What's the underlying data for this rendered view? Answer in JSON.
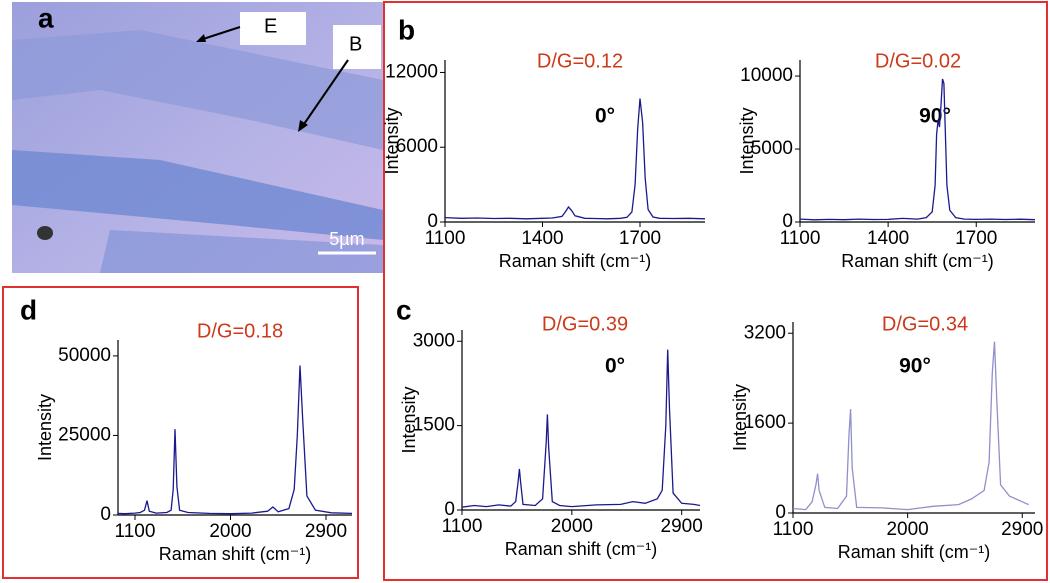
{
  "image": {
    "label": "a",
    "annotations": [
      "E",
      "B"
    ],
    "scale_bar": "5µm"
  },
  "panel_labels": [
    "b",
    "c",
    "d"
  ],
  "chart_data": [
    {
      "type": "line",
      "title": "D/G=0.12",
      "annotation": "0°",
      "xlabel": "Raman shift (cm⁻¹)",
      "ylabel": "Intensity",
      "color": "#1a1a8c",
      "x": [
        1100,
        1150,
        1200,
        1250,
        1300,
        1350,
        1400,
        1430,
        1460,
        1470,
        1480,
        1490,
        1500,
        1530,
        1560,
        1600,
        1640,
        1660,
        1675,
        1685,
        1693,
        1700,
        1708,
        1716,
        1725,
        1740,
        1760,
        1800,
        1850,
        1900
      ],
      "values": [
        350,
        300,
        320,
        280,
        300,
        260,
        300,
        320,
        450,
        800,
        1200,
        900,
        500,
        300,
        280,
        260,
        300,
        380,
        800,
        3000,
        7500,
        9900,
        8000,
        3500,
        1000,
        400,
        300,
        280,
        300,
        260
      ],
      "xlim": [
        1100,
        1900
      ],
      "xticks": [
        1100,
        1400,
        1700
      ],
      "ylim": [
        0,
        13000
      ],
      "yticks": [
        0,
        6000,
        12000
      ]
    },
    {
      "type": "line",
      "title": "D/G=0.02",
      "annotation": "90°",
      "xlabel": "Raman shift (cm⁻¹)",
      "ylabel": "Intensity",
      "color": "#1a1a8c",
      "x": [
        1100,
        1150,
        1200,
        1250,
        1300,
        1350,
        1400,
        1450,
        1500,
        1530,
        1550,
        1560,
        1565,
        1570,
        1575,
        1580,
        1585,
        1590,
        1595,
        1600,
        1610,
        1630,
        1660,
        1700,
        1750,
        1800,
        1850,
        1900
      ],
      "values": [
        200,
        150,
        180,
        160,
        200,
        170,
        180,
        250,
        200,
        300,
        700,
        2500,
        6000,
        7000,
        6500,
        8000,
        9800,
        9500,
        6000,
        2500,
        800,
        300,
        200,
        180,
        200,
        170,
        190,
        160
      ],
      "xlim": [
        1100,
        1900
      ],
      "xticks": [
        1100,
        1400,
        1700
      ],
      "ylim": [
        0,
        11100
      ],
      "yticks": [
        0,
        5000,
        10000
      ]
    },
    {
      "type": "line",
      "title": "D/G=0.39",
      "annotation": "0°",
      "xlabel": "Raman shift (cm⁻¹)",
      "ylabel": "Intensity",
      "color": "#1a1a8c",
      "x": [
        1100,
        1200,
        1300,
        1400,
        1500,
        1540,
        1560,
        1570,
        1580,
        1600,
        1700,
        1760,
        1790,
        1800,
        1810,
        1840,
        1900,
        2000,
        2200,
        2400,
        2500,
        2600,
        2700,
        2740,
        2770,
        2785,
        2800,
        2830,
        2900,
        3000,
        3050
      ],
      "values": [
        50,
        80,
        60,
        90,
        70,
        150,
        500,
        730,
        500,
        100,
        80,
        200,
        1200,
        1700,
        1100,
        150,
        80,
        60,
        90,
        100,
        150,
        120,
        200,
        350,
        1500,
        2850,
        1800,
        300,
        120,
        100,
        80
      ],
      "xlim": [
        1100,
        3050
      ],
      "xticks": [
        1100,
        2000,
        2900
      ],
      "ylim": [
        0,
        3200
      ],
      "yticks": [
        0,
        1500,
        3000
      ]
    },
    {
      "type": "line",
      "title": "D/G=0.34",
      "annotation": "90°",
      "xlabel": "Raman shift (cm⁻¹)",
      "ylabel": "Intensity",
      "color": "#9090cc",
      "x": [
        1100,
        1200,
        1250,
        1280,
        1293,
        1305,
        1350,
        1450,
        1520,
        1540,
        1552,
        1565,
        1600,
        1800,
        2000,
        2200,
        2400,
        2500,
        2600,
        2640,
        2665,
        2682,
        2700,
        2730,
        2800,
        2900,
        2950
      ],
      "values": [
        80,
        60,
        200,
        500,
        700,
        400,
        100,
        80,
        300,
        1400,
        1850,
        800,
        100,
        90,
        60,
        120,
        150,
        250,
        400,
        900,
        2500,
        3050,
        2000,
        500,
        300,
        200,
        150
      ],
      "xlim": [
        1100,
        3000
      ],
      "xticks": [
        1100,
        2000,
        2900
      ],
      "ylim": [
        0,
        3400
      ],
      "yticks": [
        0,
        1600,
        3200
      ]
    },
    {
      "type": "line",
      "title": "D/G=0.18",
      "xlabel": "Raman shift (cm⁻¹)",
      "ylabel": "Intensity",
      "color": "#1a1a8c",
      "x": [
        940,
        1000,
        1100,
        1150,
        1190,
        1213,
        1235,
        1300,
        1400,
        1440,
        1460,
        1477,
        1495,
        1520,
        1600,
        1800,
        2000,
        2200,
        2350,
        2400,
        2450,
        2550,
        2600,
        2630,
        2655,
        2680,
        2720,
        2800,
        2950,
        3145
      ],
      "values": [
        500,
        400,
        600,
        800,
        1500,
        4500,
        1200,
        600,
        800,
        1500,
        8000,
        27000,
        9000,
        1500,
        800,
        500,
        400,
        600,
        1200,
        2500,
        1000,
        2000,
        8000,
        25000,
        47000,
        30000,
        6000,
        1500,
        700,
        500
      ],
      "xlim": [
        940,
        3145
      ],
      "xticks": [
        1100,
        2000,
        2900
      ],
      "ylim": [
        0,
        55000
      ],
      "yticks": [
        0,
        25000,
        50000
      ]
    }
  ]
}
